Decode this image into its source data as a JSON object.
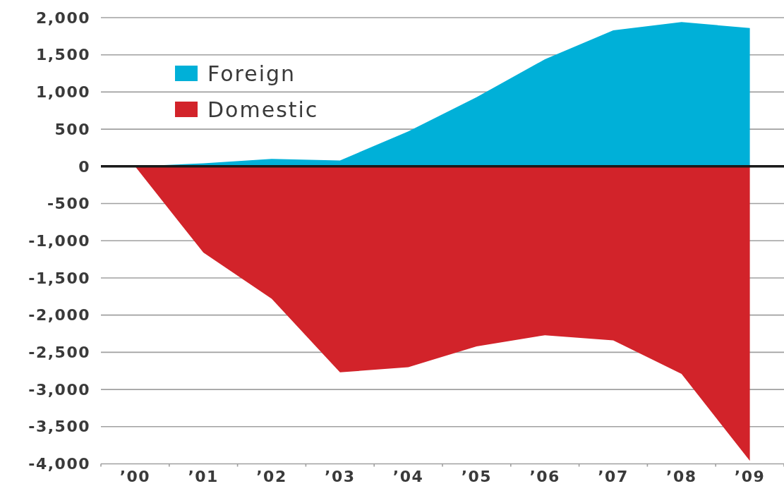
{
  "chart_data": {
    "type": "area",
    "categories": [
      "’00",
      "’01",
      "’02",
      "’03",
      "’04",
      "’05",
      "’06",
      "’07",
      "’08",
      "’09"
    ],
    "series": [
      {
        "name": "Foreign",
        "color": "#00b0d8",
        "values": [
          0,
          40,
          100,
          80,
          470,
          930,
          1440,
          1830,
          1940,
          1860
        ]
      },
      {
        "name": "Domestic",
        "color": "#d2232a",
        "values": [
          0,
          -1160,
          -1780,
          -2770,
          -2700,
          -2420,
          -2270,
          -2340,
          -2790,
          -3960
        ]
      }
    ],
    "ylim": [
      -4000,
      2000
    ],
    "yticks": [
      {
        "value": 2000,
        "label": "2,000"
      },
      {
        "value": 1500,
        "label": "1,500"
      },
      {
        "value": 1000,
        "label": "1,000"
      },
      {
        "value": 500,
        "label": "500"
      },
      {
        "value": 0,
        "label": "0"
      },
      {
        "value": -500,
        "label": "-500"
      },
      {
        "value": -1000,
        "label": "-1,000"
      },
      {
        "value": -1500,
        "label": "-1,500"
      },
      {
        "value": -2000,
        "label": "-2,000"
      },
      {
        "value": -2500,
        "label": "-2,500"
      },
      {
        "value": -3000,
        "label": "-3,000"
      },
      {
        "value": -3500,
        "label": "-3,500"
      },
      {
        "value": -4000,
        "label": "-4,000"
      }
    ],
    "grid": "y",
    "legend": "top left",
    "ref_lines": [
      {
        "axis": "y",
        "value": 0,
        "color": "#1a1a1a"
      }
    ]
  }
}
